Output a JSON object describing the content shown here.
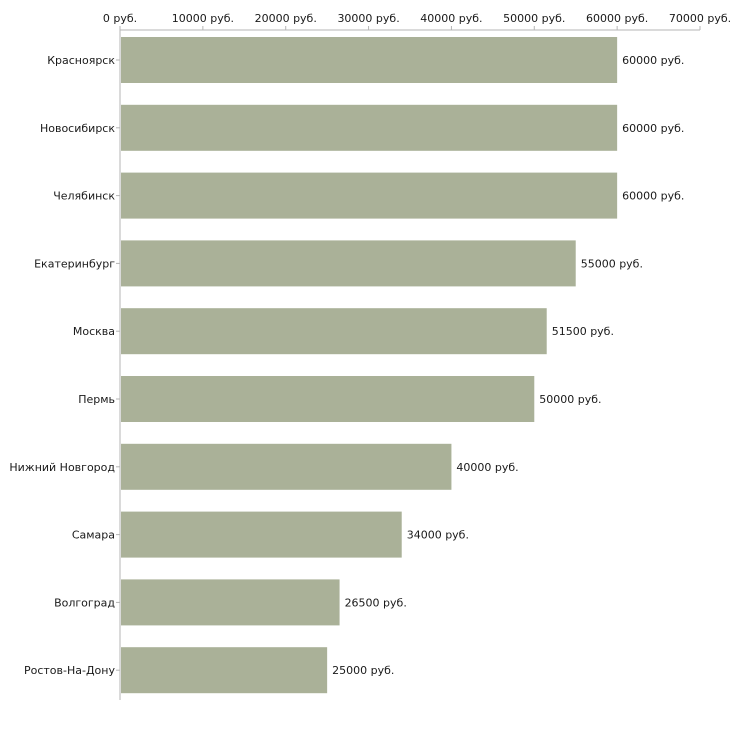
{
  "chart_data": {
    "type": "bar",
    "orientation": "horizontal",
    "title": "",
    "xlabel": "",
    "ylabel": "",
    "xlim": [
      0,
      70000
    ],
    "grid": false,
    "bar_color": "#aab198",
    "axis_ticks": [
      {
        "value": 0,
        "label": "0 руб."
      },
      {
        "value": 10000,
        "label": "10000 руб."
      },
      {
        "value": 20000,
        "label": "20000 руб."
      },
      {
        "value": 30000,
        "label": "30000 руб."
      },
      {
        "value": 40000,
        "label": "40000 руб."
      },
      {
        "value": 50000,
        "label": "50000 руб."
      },
      {
        "value": 60000,
        "label": "60000 руб."
      },
      {
        "value": 70000,
        "label": "70000 руб."
      }
    ],
    "categories": [
      "Красноярск",
      "Новосибирск",
      "Челябинск",
      "Екатеринбург",
      "Москва",
      "Пермь",
      "Нижний Новгород",
      "Самара",
      "Волгоград",
      "Ростов-На-Дону"
    ],
    "values": [
      60000,
      60000,
      60000,
      55000,
      51500,
      50000,
      40000,
      34000,
      26500,
      25000
    ],
    "value_labels": [
      "60000 руб.",
      "60000 руб.",
      "60000 руб.",
      "55000 руб.",
      "51500 руб.",
      "50000 руб.",
      "40000 руб.",
      "34000 руб.",
      "26500 руб.",
      "25000 руб."
    ]
  }
}
